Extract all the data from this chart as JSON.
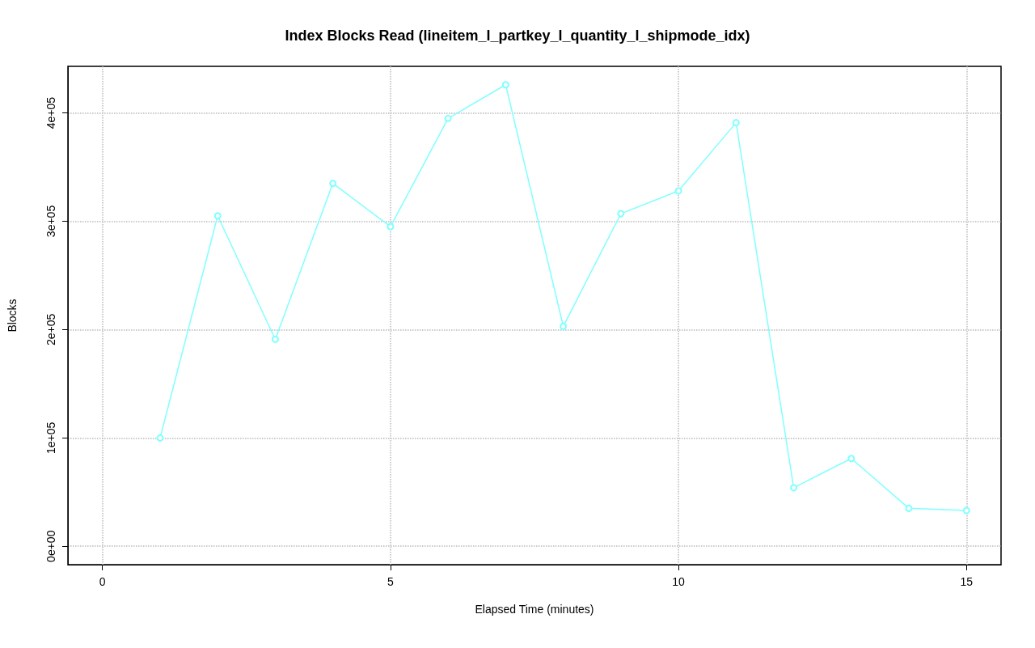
{
  "chart_data": {
    "type": "line",
    "title": "Index Blocks Read (lineitem_l_partkey_l_quantity_l_shipmode_idx)",
    "xlabel": "Elapsed Time (minutes)",
    "ylabel": "Blocks",
    "x": [
      1,
      2,
      3,
      4,
      5,
      6,
      7,
      8,
      9,
      10,
      11,
      12,
      13,
      14,
      15
    ],
    "series": [
      {
        "color": "#80ffff",
        "values": [
          100000,
          305000,
          191000,
          335000,
          295000,
          395000,
          426000,
          203000,
          307000,
          328000,
          391000,
          54000,
          81000,
          35000,
          33000
        ]
      }
    ],
    "xlim": [
      -0.6,
      15.6
    ],
    "xticks": [
      0,
      5,
      10,
      15
    ],
    "ylim": [
      -17000,
      443000
    ],
    "yticks": [
      {
        "value": 0,
        "label": "0e+00"
      },
      {
        "value": 100000,
        "label": "1e+05"
      },
      {
        "value": 200000,
        "label": "2e+05"
      },
      {
        "value": 300000,
        "label": "3e+05"
      },
      {
        "value": 400000,
        "label": "4e+05"
      }
    ],
    "grid": true,
    "marker": "circle",
    "line_style": "solid"
  }
}
